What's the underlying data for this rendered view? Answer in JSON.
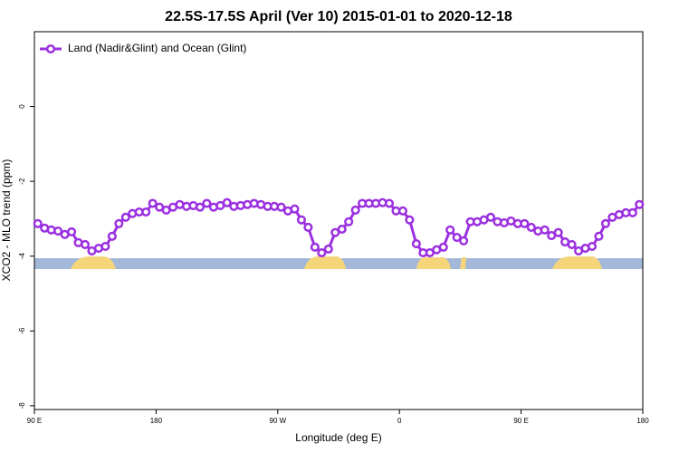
{
  "chart_data": {
    "type": "line",
    "title": "22.5S-17.5S April (Ver 10)   2015-01-01 to 2020-12-18",
    "x_label": "Longitude (deg E)",
    "y_label": "XCO2 - MLO trend (ppm)",
    "x": [
      92.5,
      97.5,
      102.5,
      107.5,
      112.5,
      117.5,
      122.5,
      127.5,
      132.5,
      137.5,
      142.5,
      147.5,
      152.5,
      157.5,
      162.5,
      167.5,
      172.5,
      177.5,
      182.5,
      187.5,
      192.5,
      197.5,
      202.5,
      207.5,
      212.5,
      217.5,
      222.5,
      227.5,
      232.5,
      237.5,
      242.5,
      247.5,
      252.5,
      257.5,
      262.5,
      267.5,
      272.5,
      277.5,
      282.5,
      287.5,
      292.5,
      297.5,
      302.5,
      307.5,
      312.5,
      317.5,
      322.5,
      327.5,
      332.5,
      337.5,
      342.5,
      347.5,
      352.5,
      357.5,
      362.5,
      367.5,
      372.5,
      377.5,
      382.5,
      387.5,
      392.5,
      397.5,
      402.5,
      407.5,
      412.5,
      417.5,
      422.5,
      427.5,
      432.5,
      437.5,
      442.5,
      447.5,
      452.5,
      457.5,
      462.5,
      467.5,
      472.5,
      477.5,
      482.5,
      487.5,
      492.5,
      497.5,
      502.5,
      507.5,
      512.5,
      517.5,
      522.5,
      527.5,
      532.5,
      537.5
    ],
    "series": [
      {
        "name": "Land (Nadir&Glint) and Ocean (Glint)",
        "color": "#9b30e0",
        "values": [
          -3.13,
          -3.25,
          -3.3,
          -3.33,
          -3.42,
          -3.35,
          -3.64,
          -3.69,
          -3.86,
          -3.79,
          -3.74,
          -3.47,
          -3.13,
          -2.96,
          -2.86,
          -2.82,
          -2.82,
          -2.59,
          -2.69,
          -2.77,
          -2.69,
          -2.62,
          -2.67,
          -2.65,
          -2.69,
          -2.59,
          -2.69,
          -2.65,
          -2.57,
          -2.67,
          -2.65,
          -2.62,
          -2.59,
          -2.62,
          -2.67,
          -2.67,
          -2.69,
          -2.79,
          -2.74,
          -3.03,
          -3.23,
          -3.76,
          -3.91,
          -3.81,
          -3.37,
          -3.28,
          -3.08,
          -2.77,
          -2.59,
          -2.59,
          -2.59,
          -2.57,
          -2.59,
          -2.79,
          -2.79,
          -3.03,
          -3.67,
          -3.91,
          -3.91,
          -3.83,
          -3.76,
          -3.3,
          -3.5,
          -3.59,
          -3.08,
          -3.08,
          -3.03,
          -2.96,
          -3.08,
          -3.11,
          -3.06,
          -3.13,
          -3.13,
          -3.23,
          -3.33,
          -3.3,
          -3.45,
          -3.37,
          -3.62,
          -3.69,
          -3.86,
          -3.79,
          -3.74,
          -3.47,
          -3.13,
          -2.96,
          -2.89,
          -2.84,
          -2.84,
          -2.62
        ]
      }
    ],
    "xlim": [
      90,
      540
    ],
    "xticks": [
      {
        "value": 90,
        "label": "90 E"
      },
      180,
      {
        "value": 270,
        "label": "90 W"
      },
      {
        "value": 360,
        "label": "0"
      },
      {
        "value": 450,
        "label": "90 E"
      },
      {
        "value": 540,
        "label": "180"
      }
    ],
    "ylim": [
      -8.1,
      2.0
    ],
    "yticks": [
      0,
      -2,
      -4,
      -6,
      -8
    ],
    "legend": "top-left"
  }
}
